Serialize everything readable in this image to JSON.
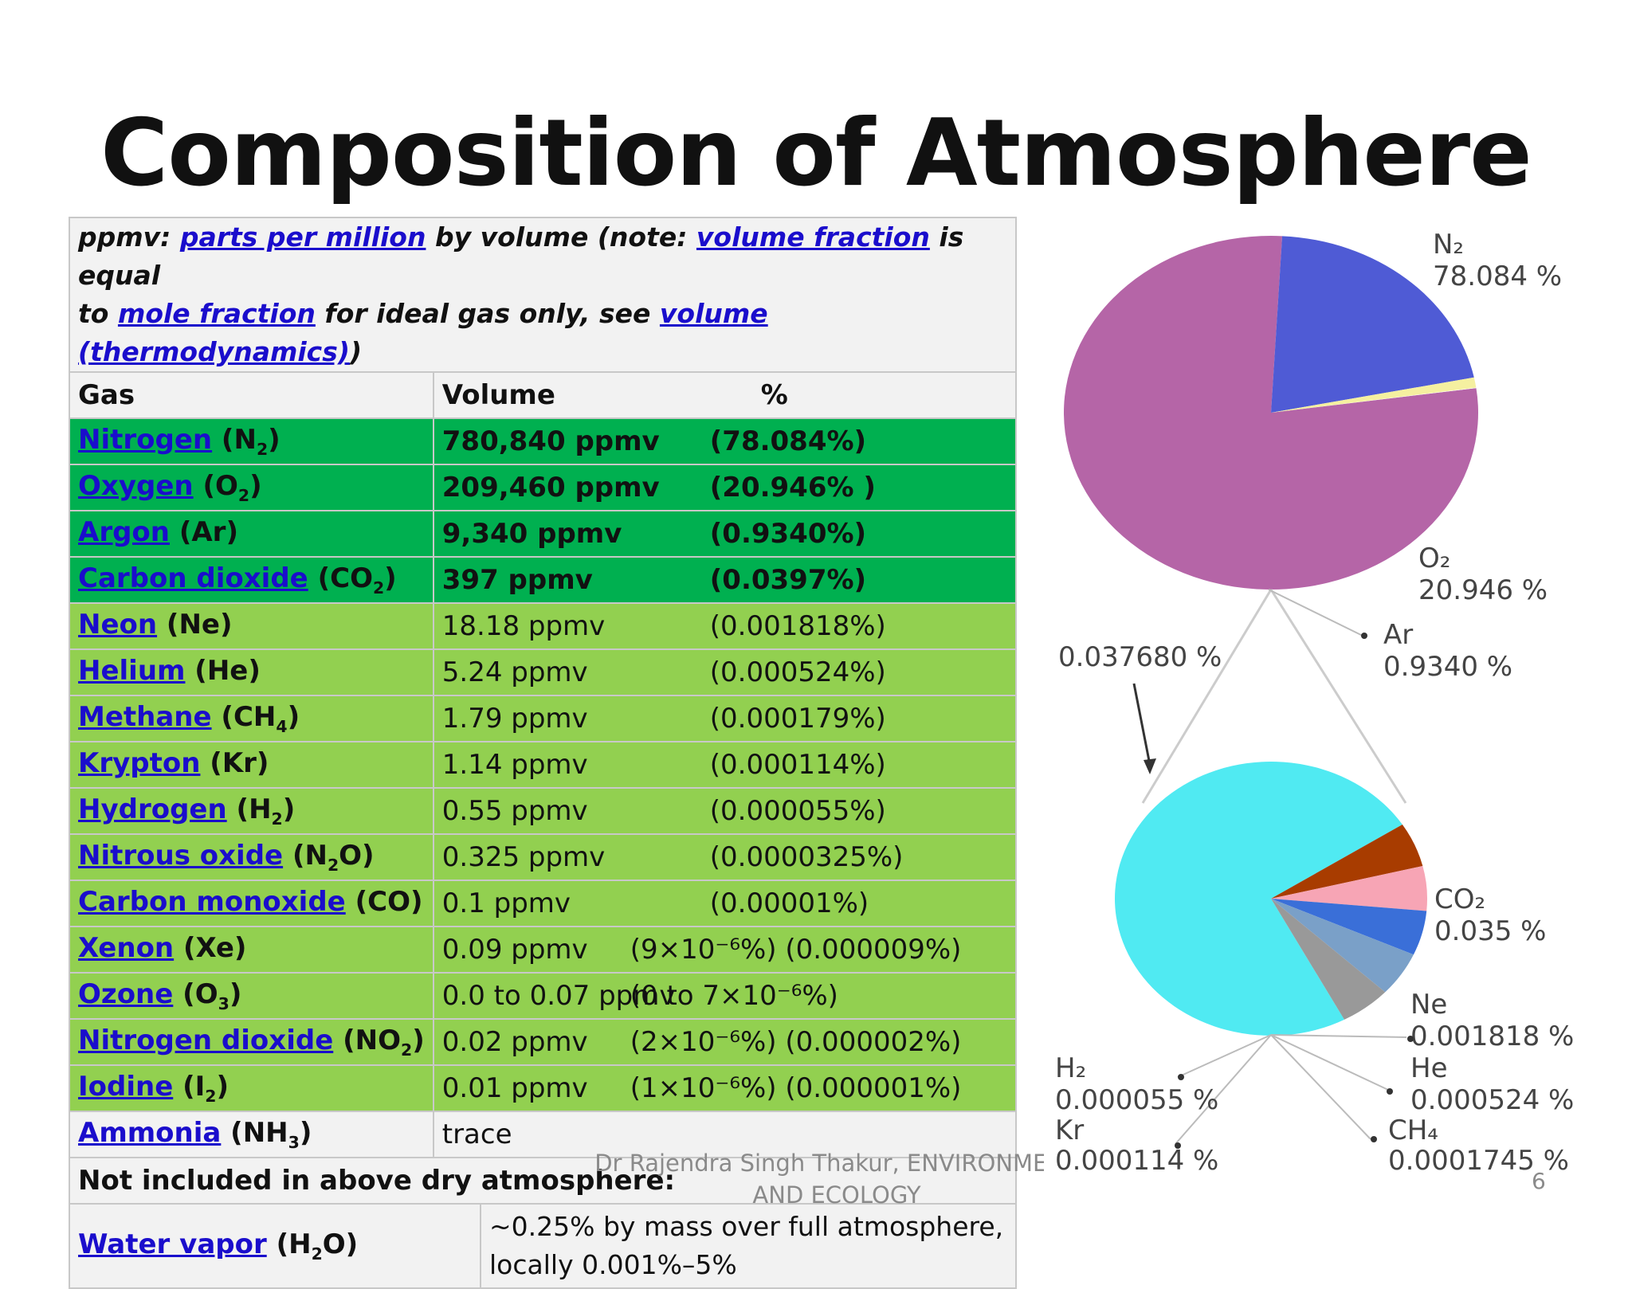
{
  "title": "Composition of Atmosphere",
  "note": {
    "p1": "ppmv: ",
    "l1": "parts per million",
    "p2": " by volume (note: ",
    "l2": "volume fraction",
    "p3": " is equal",
    "p4": "to ",
    "l3": "mole fraction",
    "p5": " for ideal gas only, see ",
    "l4": "volume (thermodynamics)",
    "p6": ")"
  },
  "header": {
    "gas": "Gas",
    "volume": "Volume",
    "percent": "%"
  },
  "rows": [
    {
      "name": "Nitrogen",
      "f1": " (N",
      "sub": "2",
      "f2": ")",
      "volume": "780,840 ppmv",
      "percent": "(78.084%)",
      "tier": "major"
    },
    {
      "name": "Oxygen",
      "f1": " (O",
      "sub": "2",
      "f2": ")",
      "volume": "209,460 ppmv",
      "percent": "(20.946% )",
      "tier": "major"
    },
    {
      "name": "Argon",
      "f1": " (Ar)",
      "sub": "",
      "f2": "",
      "volume": "9,340 ppmv",
      "percent": "(0.9340%)",
      "tier": "major"
    },
    {
      "name": "Carbon dioxide",
      "f1": " (CO",
      "sub": "2",
      "f2": ")",
      "volume": "397 ppmv",
      "percent": "(0.0397%)",
      "tier": "major"
    },
    {
      "name": "Neon",
      "f1": " (Ne)",
      "sub": "",
      "f2": "",
      "volume": "18.18 ppmv",
      "percent": "(0.001818%)",
      "tier": "minor"
    },
    {
      "name": "Helium",
      "f1": " (He)",
      "sub": "",
      "f2": "",
      "volume": "5.24 ppmv",
      "percent": "(0.000524%)",
      "tier": "minor"
    },
    {
      "name": "Methane",
      "f1": " (CH",
      "sub": "4",
      "f2": ")",
      "volume": "1.79 ppmv",
      "percent": "(0.000179%)",
      "tier": "minor"
    },
    {
      "name": "Krypton",
      "f1": " (Kr)",
      "sub": "",
      "f2": "",
      "volume": "1.14 ppmv",
      "percent": "(0.000114%)",
      "tier": "minor"
    },
    {
      "name": "Hydrogen",
      "f1": " (H",
      "sub": "2",
      "f2": ")",
      "volume": "0.55 ppmv",
      "percent": "(0.000055%)",
      "tier": "minor"
    },
    {
      "name": "Nitrous oxide",
      "f1": " (N",
      "sub": "2",
      "f2": "O)",
      "volume": "0.325 ppmv",
      "percent": "(0.0000325%)",
      "tier": "minor"
    },
    {
      "name": "Carbon monoxide",
      "f1": " (CO)",
      "sub": "",
      "f2": "",
      "volume": "0.1 ppmv",
      "percent": "(0.00001%)",
      "tier": "minor"
    },
    {
      "name": "Xenon",
      "f1": " (Xe)",
      "sub": "",
      "f2": "",
      "volume": "0.09 ppmv",
      "percent": "(9×10⁻⁶%) (0.000009%)",
      "tier": "minor"
    },
    {
      "name": "Ozone",
      "f1": " (O",
      "sub": "3",
      "f2": ")",
      "volume": "0.0 to 0.07 ppmv",
      "percent": "(0 to 7×10⁻⁶%)",
      "tier": "minor"
    },
    {
      "name": "Nitrogen dioxide",
      "f1": " (NO",
      "sub": "2",
      "f2": ")",
      "volume": "0.02 ppmv",
      "percent": "(2×10⁻⁶%) (0.000002%)",
      "tier": "minor"
    },
    {
      "name": "Iodine",
      "f1": " (I",
      "sub": "2",
      "f2": ")",
      "volume": "0.01 ppmv",
      "percent": "(1×10⁻⁶%) (0.000001%)",
      "tier": "minor"
    },
    {
      "name": "Ammonia",
      "f1": " (NH",
      "sub": "3",
      "f2": ")",
      "volume": "trace",
      "percent": "",
      "tier": "plain"
    }
  ],
  "not_included": "Not included in above dry atmosphere:",
  "water": {
    "name": "Water vapor",
    "f1": " (H",
    "sub": "2",
    "f2": "O)",
    "line1": "~0.25% by mass over full atmosphere,",
    "line2": "locally 0.001%–5%"
  },
  "footer": {
    "line1": "Dr Rajendra Singh Thakur, ENVIRONMENT",
    "line2": "AND ECOLOGY"
  },
  "page_number": "6",
  "chart_data": [
    {
      "type": "pie",
      "categories": [
        "N₂",
        "O₂",
        "Ar",
        "0.037680 %"
      ],
      "values": [
        78.084,
        20.946,
        0.934,
        0.03768
      ],
      "labels": [
        {
          "name": "N₂",
          "value": "78.084 %"
        },
        {
          "name": "O₂",
          "value": "20.946 %"
        },
        {
          "name": "Ar",
          "value": "0.9340 %"
        }
      ],
      "callout": "0.037680 %",
      "colors": [
        "#b565a7",
        "#4f5bd5",
        "#f5f0a0",
        "#ffffff"
      ]
    },
    {
      "type": "pie",
      "categories": [
        "CO₂",
        "Ne",
        "He",
        "CH₄",
        "Kr",
        "H₂"
      ],
      "values": [
        0.035,
        0.001818,
        0.000524,
        0.0001745,
        0.000114,
        5.5e-05
      ],
      "labels": [
        {
          "name": "CO₂",
          "value": "0.035 %"
        },
        {
          "name": "Ne",
          "value": "0.001818 %"
        },
        {
          "name": "He",
          "value": "0.000524 %"
        },
        {
          "name": "CH₄",
          "value": "0.0001745 %"
        },
        {
          "name": "Kr",
          "value": "0.000114 %"
        },
        {
          "name": "H₂",
          "value": "0.000055 %"
        }
      ],
      "colors": [
        "#50eaf2",
        "#a83c00",
        "#f7a5b5",
        "#3a6fd8",
        "#7aa0c8",
        "#999999"
      ]
    }
  ]
}
